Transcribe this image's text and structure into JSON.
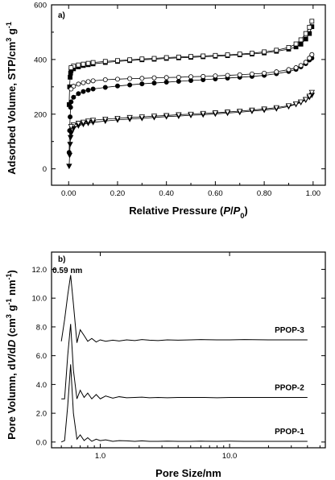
{
  "chart_data": [
    {
      "panel_label": "a)",
      "type": "scatter",
      "xlabel_parts": [
        "Relative Pressure (",
        "P",
        "/",
        "P",
        "0",
        ")"
      ],
      "ylabel_parts": [
        "Adsorbed Volume, STP/cm",
        "3",
        " g",
        "-1"
      ],
      "xlim": [
        -0.07,
        1.05
      ],
      "ylim": [
        -60,
        600
      ],
      "xticks": [
        0.0,
        0.2,
        0.4,
        0.6,
        0.8,
        1.0
      ],
      "xtick_labels": [
        "0.00",
        "0.20",
        "0.40",
        "0.60",
        "0.80",
        "1.00"
      ],
      "yticks": [
        0,
        200,
        400,
        600
      ],
      "ytick_labels": [
        "0",
        "200",
        "400",
        "600"
      ],
      "series": [
        {
          "marker": "square",
          "fill": "filled",
          "branch": "adsorption",
          "x": [
            0.002,
            0.004,
            0.006,
            0.008,
            0.01,
            0.02,
            0.04,
            0.06,
            0.08,
            0.1,
            0.15,
            0.2,
            0.25,
            0.3,
            0.35,
            0.4,
            0.45,
            0.5,
            0.55,
            0.6,
            0.65,
            0.7,
            0.75,
            0.8,
            0.85,
            0.9,
            0.93,
            0.95,
            0.97,
            0.985,
            0.995
          ],
          "y": [
            235,
            300,
            335,
            350,
            360,
            366,
            373,
            378,
            381,
            384,
            389,
            393,
            396,
            399,
            401,
            404,
            406,
            408,
            410,
            412,
            414,
            417,
            420,
            424,
            430,
            438,
            446,
            456,
            475,
            495,
            520
          ]
        },
        {
          "marker": "square",
          "fill": "open",
          "branch": "desorption",
          "x": [
            0.995,
            0.985,
            0.97,
            0.95,
            0.93,
            0.9,
            0.85,
            0.8,
            0.75,
            0.7,
            0.65,
            0.6,
            0.55,
            0.5,
            0.45,
            0.4,
            0.35,
            0.3,
            0.25,
            0.2,
            0.15,
            0.1,
            0.08,
            0.06,
            0.04,
            0.02,
            0.01
          ],
          "y": [
            540,
            518,
            495,
            472,
            457,
            444,
            434,
            428,
            423,
            420,
            417,
            415,
            413,
            411,
            409,
            407,
            404,
            402,
            399,
            396,
            393,
            389,
            386,
            383,
            380,
            376,
            370
          ]
        },
        {
          "marker": "circle",
          "fill": "filled",
          "branch": "adsorption",
          "x": [
            0.002,
            0.004,
            0.006,
            0.008,
            0.01,
            0.02,
            0.04,
            0.06,
            0.08,
            0.1,
            0.15,
            0.2,
            0.25,
            0.3,
            0.35,
            0.4,
            0.45,
            0.5,
            0.55,
            0.6,
            0.65,
            0.7,
            0.75,
            0.8,
            0.85,
            0.9,
            0.93,
            0.95,
            0.97,
            0.985,
            0.995
          ],
          "y": [
            60,
            140,
            190,
            225,
            245,
            262,
            275,
            283,
            288,
            292,
            298,
            303,
            307,
            311,
            314,
            317,
            320,
            323,
            326,
            329,
            332,
            335,
            338,
            342,
            348,
            356,
            364,
            373,
            385,
            398,
            405
          ]
        },
        {
          "marker": "circle",
          "fill": "open",
          "branch": "desorption",
          "x": [
            0.995,
            0.985,
            0.97,
            0.95,
            0.93,
            0.9,
            0.85,
            0.8,
            0.75,
            0.7,
            0.65,
            0.6,
            0.55,
            0.5,
            0.45,
            0.4,
            0.35,
            0.3,
            0.25,
            0.2,
            0.15,
            0.1,
            0.08,
            0.06,
            0.04,
            0.02,
            0.01
          ],
          "y": [
            418,
            405,
            390,
            378,
            370,
            363,
            355,
            350,
            347,
            344,
            342,
            340,
            338,
            337,
            335,
            334,
            333,
            331,
            330,
            328,
            326,
            322,
            319,
            315,
            310,
            302,
            292
          ]
        },
        {
          "marker": "triangle-down",
          "fill": "filled",
          "branch": "adsorption",
          "x": [
            0.002,
            0.004,
            0.006,
            0.008,
            0.01,
            0.02,
            0.04,
            0.06,
            0.08,
            0.1,
            0.15,
            0.2,
            0.25,
            0.3,
            0.35,
            0.4,
            0.45,
            0.5,
            0.55,
            0.6,
            0.65,
            0.7,
            0.75,
            0.8,
            0.85,
            0.9,
            0.93,
            0.95,
            0.97,
            0.985,
            0.995
          ],
          "y": [
            10,
            50,
            90,
            115,
            130,
            148,
            158,
            163,
            167,
            170,
            175,
            179,
            182,
            185,
            188,
            191,
            193,
            196,
            198,
            201,
            204,
            207,
            211,
            215,
            220,
            228,
            236,
            243,
            252,
            262,
            270
          ]
        },
        {
          "marker": "triangle-down",
          "fill": "open",
          "branch": "desorption",
          "x": [
            0.995,
            0.985,
            0.97,
            0.95,
            0.93,
            0.9,
            0.85,
            0.8,
            0.75,
            0.7,
            0.65,
            0.6,
            0.55,
            0.5,
            0.45,
            0.4,
            0.35,
            0.3,
            0.25,
            0.2,
            0.15,
            0.1,
            0.08,
            0.06,
            0.04,
            0.02,
            0.01
          ],
          "y": [
            280,
            266,
            254,
            245,
            238,
            231,
            224,
            219,
            215,
            211,
            208,
            205,
            203,
            200,
            198,
            195,
            193,
            190,
            188,
            185,
            182,
            178,
            175,
            171,
            167,
            161,
            155
          ]
        }
      ]
    },
    {
      "panel_label": "b)",
      "type": "line",
      "xscale": "log",
      "xlabel": "Pore Size/nm",
      "ylabel_parts": [
        "Pore Volumn, d",
        "V",
        "/d",
        "D",
        " (cm",
        "3",
        " g",
        "-1",
        " nm",
        "-1",
        ")"
      ],
      "xlim": [
        0.42,
        55
      ],
      "ylim": [
        -0.4,
        13.2
      ],
      "xticks": [
        1.0,
        10.0
      ],
      "xtick_labels": [
        "1.0",
        "10.0"
      ],
      "yticks": [
        0,
        2,
        4,
        6,
        8,
        10,
        12
      ],
      "ytick_labels": [
        "0.0",
        "2.0",
        "4.0",
        "6.0",
        "8.0",
        "10.0",
        "12.0"
      ],
      "annotation": "0.59 nm",
      "series": [
        {
          "name": "PPOP-3",
          "x": [
            0.5,
            0.53,
            0.56,
            0.59,
            0.62,
            0.66,
            0.7,
            0.75,
            0.8,
            0.86,
            0.93,
            1.0,
            1.1,
            1.25,
            1.4,
            1.6,
            1.85,
            2.1,
            2.4,
            2.8,
            3.3,
            4,
            5,
            6,
            8,
            10,
            13,
            20,
            30,
            40
          ],
          "y": [
            7.0,
            8.5,
            10.2,
            11.6,
            9.6,
            6.9,
            7.8,
            7.4,
            7.0,
            7.2,
            6.95,
            7.1,
            7.0,
            7.08,
            7.02,
            7.1,
            7.05,
            7.12,
            7.08,
            7.05,
            7.1,
            7.08,
            7.1,
            7.12,
            7.1,
            7.1,
            7.12,
            7.1,
            7.1,
            7.1
          ]
        },
        {
          "name": "PPOP-2",
          "x": [
            0.5,
            0.53,
            0.56,
            0.59,
            0.62,
            0.66,
            0.7,
            0.75,
            0.8,
            0.86,
            0.93,
            1.0,
            1.1,
            1.25,
            1.4,
            1.6,
            1.85,
            2.1,
            2.4,
            2.8,
            3.3,
            4,
            5,
            6,
            8,
            10,
            13,
            20,
            30,
            40
          ],
          "y": [
            3.0,
            3.0,
            6.0,
            8.2,
            5.0,
            3.0,
            3.6,
            3.1,
            3.4,
            3.0,
            3.3,
            3.0,
            3.2,
            3.05,
            3.15,
            3.08,
            3.1,
            3.12,
            3.08,
            3.1,
            3.08,
            3.1,
            3.1,
            3.1,
            3.08,
            3.1,
            3.1,
            3.1,
            3.1,
            3.1
          ]
        },
        {
          "name": "PPOP-1",
          "x": [
            0.5,
            0.53,
            0.56,
            0.59,
            0.62,
            0.66,
            0.7,
            0.75,
            0.8,
            0.86,
            0.93,
            1.0,
            1.1,
            1.25,
            1.4,
            1.6,
            1.85,
            2.1,
            2.4,
            2.8,
            3.3,
            4,
            5,
            6,
            8,
            10,
            13,
            20,
            30,
            40
          ],
          "y": [
            0.0,
            0.1,
            2.5,
            5.4,
            2.0,
            0.2,
            0.5,
            0.1,
            0.3,
            0.05,
            0.2,
            0.1,
            0.15,
            0.05,
            0.1,
            0.08,
            0.05,
            0.08,
            0.05,
            0.05,
            0.06,
            0.05,
            0.05,
            0.06,
            0.05,
            0.06,
            0.05,
            0.05,
            0.05,
            0.05
          ]
        }
      ]
    }
  ]
}
